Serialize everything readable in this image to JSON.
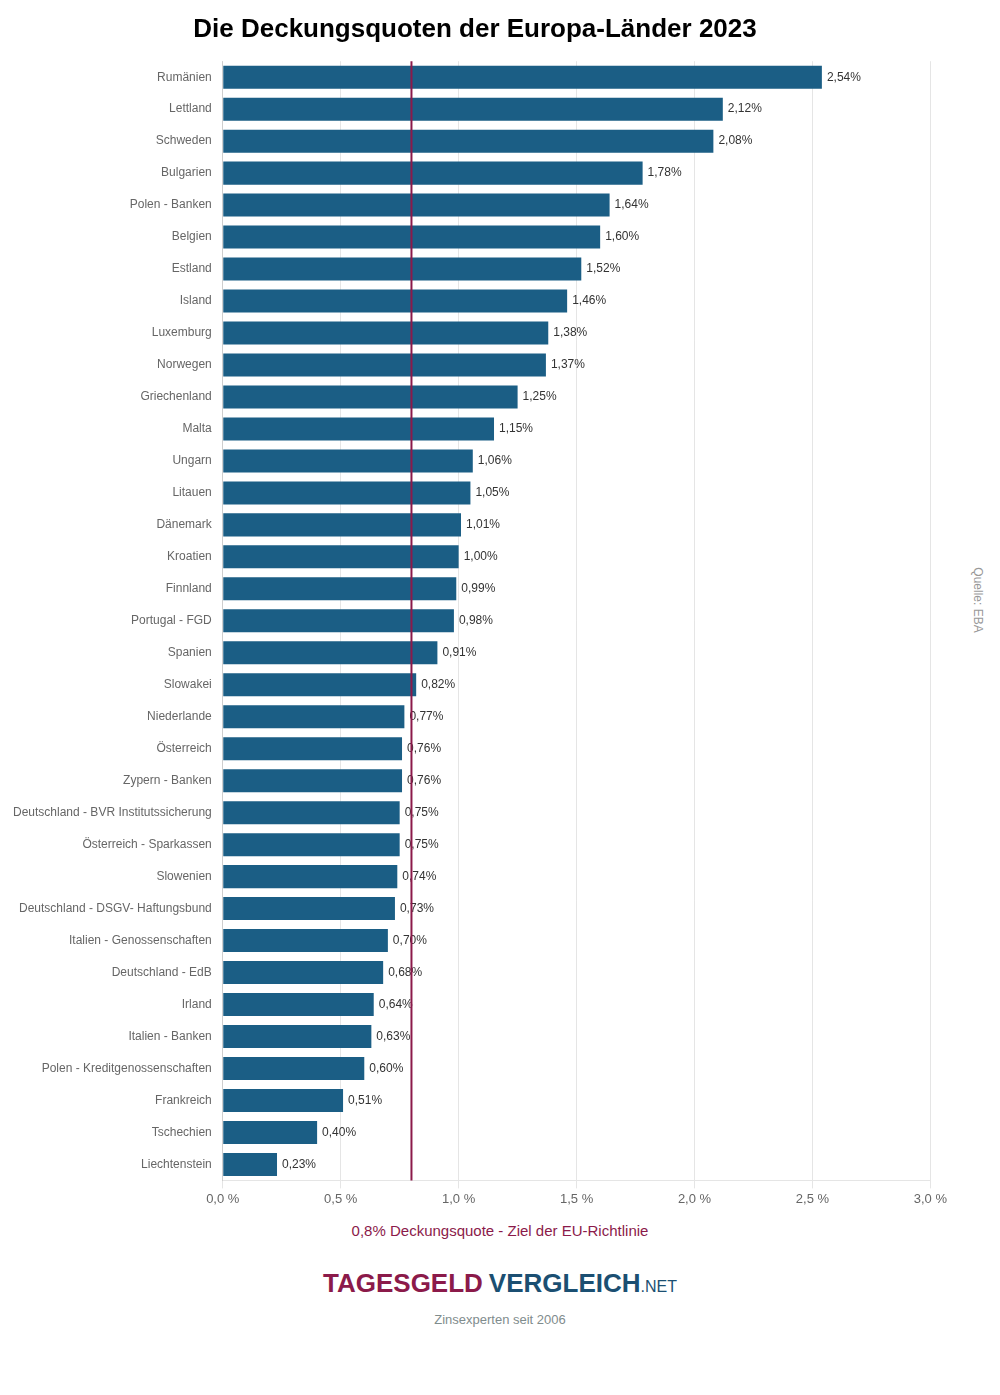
{
  "chart_data": {
    "type": "bar",
    "orientation": "horizontal",
    "title": "Die Deckungsquoten der Europa-Länder 2023",
    "categories": [
      "Rumänien",
      "Lettland",
      "Schweden",
      "Bulgarien",
      "Polen - Banken",
      "Belgien",
      "Estland",
      "Island",
      "Luxemburg",
      "Norwegen",
      "Griechenland",
      "Malta",
      "Ungarn",
      "Litauen",
      "Dänemark",
      "Kroatien",
      "Finnland",
      "Portugal - FGD",
      "Spanien",
      "Slowakei",
      "Niederlande",
      "Österreich",
      "Zypern - Banken",
      "Deutschland - BVR Institutssicherung",
      "Österreich - Sparkassen",
      "Slowenien",
      "Deutschland - DSGV- Haftungsbund",
      "Italien - Genossenschaften",
      "Deutschland - EdB",
      "Irland",
      "Italien - Banken",
      "Polen - Kreditgenossenschaften",
      "Frankreich",
      "Tschechien",
      "Liechtenstein"
    ],
    "values": [
      2.54,
      2.12,
      2.08,
      1.78,
      1.64,
      1.6,
      1.52,
      1.46,
      1.38,
      1.37,
      1.25,
      1.15,
      1.06,
      1.05,
      1.01,
      1.0,
      0.99,
      0.98,
      0.91,
      0.82,
      0.77,
      0.76,
      0.76,
      0.75,
      0.75,
      0.74,
      0.73,
      0.7,
      0.68,
      0.64,
      0.63,
      0.6,
      0.51,
      0.4,
      0.23
    ],
    "value_labels": [
      "2,54%",
      "2,12%",
      "2,08%",
      "1,78%",
      "1,64%",
      "1,60%",
      "1,52%",
      "1,46%",
      "1,38%",
      "1,37%",
      "1,25%",
      "1,15%",
      "1,06%",
      "1,05%",
      "1,01%",
      "1,00%",
      "0,99%",
      "0,98%",
      "0,91%",
      "0,82%",
      "0,77%",
      "0,76%",
      "0,76%",
      "0,75%",
      "0,75%",
      "0,74%",
      "0,73%",
      "0,70%",
      "0,68%",
      "0,64%",
      "0,63%",
      "0,60%",
      "0,51%",
      "0,40%",
      "0,23%"
    ],
    "data_labels": true,
    "color": "#1b5e85",
    "xlim": [
      0,
      3.0
    ],
    "xticks": [
      {
        "value": 0.0,
        "label": "0,0 %"
      },
      {
        "value": 0.5,
        "label": "0,5 %"
      },
      {
        "value": 1.0,
        "label": "1,0 %"
      },
      {
        "value": 1.5,
        "label": "1,5 %"
      },
      {
        "value": 2.0,
        "label": "2,0 %"
      },
      {
        "value": 2.5,
        "label": "2,5 %"
      },
      {
        "value": 3.0,
        "label": "3,0 %"
      }
    ],
    "grid": true,
    "reference_line": {
      "value": 0.8,
      "label": "0,8% Deckungsquote - Ziel der EU-Richtlinie",
      "color": "#8b1a4a"
    },
    "source": "Quelle: EBA",
    "logo": [
      {
        "text": "TAGESGELD",
        "color": "#8b1a4a"
      },
      {
        "text": "VERGLEICH",
        "color": "#1b4f72"
      },
      {
        "text": ".NET",
        "color": "#1b4f72"
      }
    ],
    "logo_subtitle": {
      "text": "Zinsexperten seit 2006",
      "color": "#7f8c8d"
    }
  }
}
